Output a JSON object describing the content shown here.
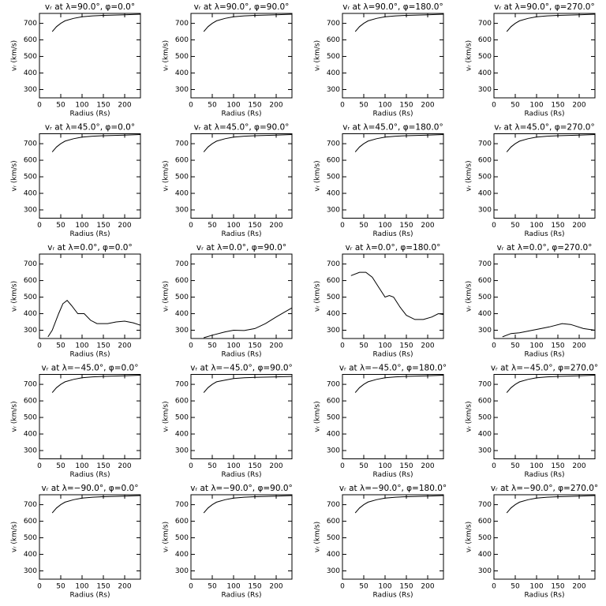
{
  "chart_data": [
    {
      "type": "line",
      "title": "vᵣ at λ=90.0°, φ=0.0°",
      "xlabel": "Radius (Rs)",
      "ylabel": "vᵣ (km/s)",
      "x": [
        30,
        40,
        50,
        60,
        80,
        100,
        125,
        150,
        200,
        237
      ],
      "values": [
        650,
        680,
        700,
        715,
        730,
        740,
        745,
        748,
        752,
        755
      ],
      "xlim": [
        0,
        237
      ],
      "ylim": [
        250,
        760
      ],
      "xticks": [
        0,
        50,
        100,
        150,
        200
      ],
      "yticks": [
        300,
        400,
        500,
        600,
        700
      ]
    },
    {
      "type": "line",
      "title": "vᵣ at λ=90.0°, φ=90.0°",
      "xlabel": "Radius (Rs)",
      "ylabel": "vᵣ (km/s)",
      "x": [
        30,
        40,
        50,
        60,
        80,
        100,
        125,
        150,
        200,
        237
      ],
      "values": [
        650,
        680,
        700,
        715,
        730,
        740,
        745,
        748,
        752,
        755
      ],
      "xlim": [
        0,
        237
      ],
      "ylim": [
        250,
        760
      ],
      "xticks": [
        0,
        50,
        100,
        150,
        200
      ],
      "yticks": [
        300,
        400,
        500,
        600,
        700
      ]
    },
    {
      "type": "line",
      "title": "vᵣ at λ=90.0°, φ=180.0°",
      "xlabel": "Radius (Rs)",
      "ylabel": "vᵣ (km/s)",
      "x": [
        30,
        40,
        50,
        60,
        80,
        100,
        125,
        150,
        200,
        237
      ],
      "values": [
        650,
        680,
        700,
        715,
        730,
        740,
        745,
        748,
        752,
        755
      ],
      "xlim": [
        0,
        237
      ],
      "ylim": [
        250,
        760
      ],
      "xticks": [
        0,
        50,
        100,
        150,
        200
      ],
      "yticks": [
        300,
        400,
        500,
        600,
        700
      ]
    },
    {
      "type": "line",
      "title": "vᵣ at λ=90.0°, φ=270.0°",
      "xlabel": "Radius (Rs)",
      "ylabel": "vᵣ (km/s)",
      "x": [
        30,
        40,
        50,
        60,
        80,
        100,
        125,
        150,
        200,
        237
      ],
      "values": [
        650,
        680,
        700,
        715,
        730,
        740,
        745,
        748,
        752,
        755
      ],
      "xlim": [
        0,
        237
      ],
      "ylim": [
        250,
        760
      ],
      "xticks": [
        0,
        50,
        100,
        150,
        200
      ],
      "yticks": [
        300,
        400,
        500,
        600,
        700
      ]
    },
    {
      "type": "line",
      "title": "vᵣ at λ=45.0°, φ=0.0°",
      "xlabel": "Radius (Rs)",
      "ylabel": "vᵣ (km/s)",
      "x": [
        30,
        40,
        50,
        60,
        80,
        100,
        125,
        150,
        200,
        237
      ],
      "values": [
        650,
        680,
        700,
        715,
        730,
        740,
        745,
        748,
        752,
        755
      ],
      "xlim": [
        0,
        237
      ],
      "ylim": [
        250,
        760
      ],
      "xticks": [
        0,
        50,
        100,
        150,
        200
      ],
      "yticks": [
        300,
        400,
        500,
        600,
        700
      ]
    },
    {
      "type": "line",
      "title": "vᵣ at λ=45.0°, φ=90.0°",
      "xlabel": "Radius (Rs)",
      "ylabel": "vᵣ (km/s)",
      "x": [
        30,
        40,
        50,
        60,
        80,
        100,
        125,
        150,
        200,
        237
      ],
      "values": [
        650,
        680,
        700,
        715,
        730,
        740,
        745,
        748,
        752,
        755
      ],
      "xlim": [
        0,
        237
      ],
      "ylim": [
        250,
        760
      ],
      "xticks": [
        0,
        50,
        100,
        150,
        200
      ],
      "yticks": [
        300,
        400,
        500,
        600,
        700
      ]
    },
    {
      "type": "line",
      "title": "vᵣ at λ=45.0°, φ=180.0°",
      "xlabel": "Radius (Rs)",
      "ylabel": "vᵣ (km/s)",
      "x": [
        30,
        40,
        50,
        60,
        80,
        100,
        125,
        150,
        200,
        237
      ],
      "values": [
        650,
        680,
        700,
        715,
        730,
        740,
        745,
        748,
        752,
        755
      ],
      "xlim": [
        0,
        237
      ],
      "ylim": [
        250,
        760
      ],
      "xticks": [
        0,
        50,
        100,
        150,
        200
      ],
      "yticks": [
        300,
        400,
        500,
        600,
        700
      ]
    },
    {
      "type": "line",
      "title": "vᵣ at λ=45.0°, φ=270.0°",
      "xlabel": "Radius (Rs)",
      "ylabel": "vᵣ (km/s)",
      "x": [
        30,
        40,
        50,
        60,
        80,
        100,
        125,
        150,
        200,
        237
      ],
      "values": [
        650,
        680,
        700,
        715,
        730,
        740,
        745,
        748,
        752,
        755
      ],
      "xlim": [
        0,
        237
      ],
      "ylim": [
        250,
        760
      ],
      "xticks": [
        0,
        50,
        100,
        150,
        200
      ],
      "yticks": [
        300,
        400,
        500,
        600,
        700
      ]
    },
    {
      "type": "line",
      "title": "vᵣ at λ=0.0°, φ=0.0°",
      "xlabel": "Radius (Rs)",
      "ylabel": "vᵣ (km/s)",
      "x": [
        20,
        30,
        45,
        55,
        65,
        75,
        90,
        105,
        120,
        135,
        160,
        180,
        200,
        220,
        237
      ],
      "values": [
        260,
        300,
        400,
        460,
        480,
        450,
        400,
        400,
        360,
        340,
        340,
        350,
        355,
        345,
        330
      ],
      "xlim": [
        0,
        237
      ],
      "ylim": [
        250,
        760
      ],
      "xticks": [
        0,
        50,
        100,
        150,
        200
      ],
      "yticks": [
        300,
        400,
        500,
        600,
        700
      ]
    },
    {
      "type": "line",
      "title": "vᵣ at λ=0.0°, φ=90.0°",
      "xlabel": "Radius (Rs)",
      "ylabel": "vᵣ (km/s)",
      "x": [
        30,
        50,
        80,
        100,
        125,
        150,
        175,
        200,
        220,
        237
      ],
      "values": [
        255,
        270,
        290,
        300,
        298,
        310,
        340,
        380,
        410,
        435
      ],
      "xlim": [
        0,
        237
      ],
      "ylim": [
        250,
        760
      ],
      "xticks": [
        0,
        50,
        100,
        150,
        200
      ],
      "yticks": [
        300,
        400,
        500,
        600,
        700
      ]
    },
    {
      "type": "line",
      "title": "vᵣ at λ=0.0°, φ=180.0°",
      "xlabel": "Radius (Rs)",
      "ylabel": "vᵣ (km/s)",
      "x": [
        20,
        40,
        55,
        70,
        85,
        100,
        110,
        120,
        135,
        150,
        170,
        190,
        210,
        225,
        237
      ],
      "values": [
        630,
        650,
        650,
        620,
        560,
        500,
        510,
        500,
        440,
        390,
        365,
        365,
        380,
        400,
        395
      ],
      "xlim": [
        0,
        237
      ],
      "ylim": [
        250,
        760
      ],
      "xticks": [
        0,
        50,
        100,
        150,
        200
      ],
      "yticks": [
        300,
        400,
        500,
        600,
        700
      ]
    },
    {
      "type": "line",
      "title": "vᵣ at λ=0.0°, φ=270.0°",
      "xlabel": "Radius (Rs)",
      "ylabel": "vᵣ (km/s)",
      "x": [
        20,
        40,
        60,
        80,
        100,
        130,
        160,
        180,
        210,
        237
      ],
      "values": [
        260,
        280,
        285,
        295,
        305,
        320,
        340,
        335,
        310,
        300
      ],
      "xlim": [
        0,
        237
      ],
      "ylim": [
        250,
        760
      ],
      "xticks": [
        0,
        50,
        100,
        150,
        200
      ],
      "yticks": [
        300,
        400,
        500,
        600,
        700
      ]
    },
    {
      "type": "line",
      "title": "vᵣ at λ=−45.0°, φ=0.0°",
      "xlabel": "Radius (Rs)",
      "ylabel": "vᵣ (km/s)",
      "x": [
        30,
        40,
        50,
        60,
        80,
        100,
        125,
        150,
        200,
        237
      ],
      "values": [
        650,
        680,
        700,
        715,
        730,
        740,
        745,
        748,
        752,
        755
      ],
      "xlim": [
        0,
        237
      ],
      "ylim": [
        250,
        760
      ],
      "xticks": [
        0,
        50,
        100,
        150,
        200
      ],
      "yticks": [
        300,
        400,
        500,
        600,
        700
      ]
    },
    {
      "type": "line",
      "title": "vᵣ at λ=−45.0°, φ=90.0°",
      "xlabel": "Radius (Rs)",
      "ylabel": "vᵣ (km/s)",
      "x": [
        30,
        40,
        50,
        60,
        80,
        100,
        125,
        150,
        200,
        237
      ],
      "values": [
        650,
        680,
        700,
        715,
        725,
        735,
        740,
        742,
        745,
        748
      ],
      "xlim": [
        0,
        237
      ],
      "ylim": [
        250,
        760
      ],
      "xticks": [
        0,
        50,
        100,
        150,
        200
      ],
      "yticks": [
        300,
        400,
        500,
        600,
        700
      ]
    },
    {
      "type": "line",
      "title": "vᵣ at λ=−45.0°, φ=180.0°",
      "xlabel": "Radius (Rs)",
      "ylabel": "vᵣ (km/s)",
      "x": [
        30,
        40,
        50,
        60,
        80,
        100,
        125,
        150,
        200,
        237
      ],
      "values": [
        650,
        680,
        700,
        715,
        730,
        740,
        745,
        748,
        752,
        755
      ],
      "xlim": [
        0,
        237
      ],
      "ylim": [
        250,
        760
      ],
      "xticks": [
        0,
        50,
        100,
        150,
        200
      ],
      "yticks": [
        300,
        400,
        500,
        600,
        700
      ]
    },
    {
      "type": "line",
      "title": "vᵣ at λ=−45.0°, φ=270.0°",
      "xlabel": "Radius (Rs)",
      "ylabel": "vᵣ (km/s)",
      "x": [
        30,
        40,
        50,
        60,
        80,
        100,
        125,
        150,
        200,
        237
      ],
      "values": [
        650,
        680,
        700,
        715,
        730,
        740,
        745,
        748,
        752,
        755
      ],
      "xlim": [
        0,
        237
      ],
      "ylim": [
        250,
        760
      ],
      "xticks": [
        0,
        50,
        100,
        150,
        200
      ],
      "yticks": [
        300,
        400,
        500,
        600,
        700
      ]
    },
    {
      "type": "line",
      "title": "vᵣ at λ=−90.0°, φ=0.0°",
      "xlabel": "Radius (Rs)",
      "ylabel": "vᵣ (km/s)",
      "x": [
        30,
        40,
        50,
        60,
        80,
        100,
        125,
        150,
        200,
        237
      ],
      "values": [
        650,
        680,
        700,
        715,
        730,
        740,
        745,
        748,
        752,
        755
      ],
      "xlim": [
        0,
        237
      ],
      "ylim": [
        250,
        760
      ],
      "xticks": [
        0,
        50,
        100,
        150,
        200
      ],
      "yticks": [
        300,
        400,
        500,
        600,
        700
      ]
    },
    {
      "type": "line",
      "title": "vᵣ at λ=−90.0°, φ=90.0°",
      "xlabel": "Radius (Rs)",
      "ylabel": "vᵣ (km/s)",
      "x": [
        30,
        40,
        50,
        60,
        80,
        100,
        125,
        150,
        200,
        237
      ],
      "values": [
        650,
        680,
        700,
        715,
        730,
        740,
        745,
        748,
        752,
        755
      ],
      "xlim": [
        0,
        237
      ],
      "ylim": [
        250,
        760
      ],
      "xticks": [
        0,
        50,
        100,
        150,
        200
      ],
      "yticks": [
        300,
        400,
        500,
        600,
        700
      ]
    },
    {
      "type": "line",
      "title": "vᵣ at λ=−90.0°, φ=180.0°",
      "xlabel": "Radius (Rs)",
      "ylabel": "vᵣ (km/s)",
      "x": [
        30,
        40,
        50,
        60,
        80,
        100,
        125,
        150,
        200,
        237
      ],
      "values": [
        650,
        680,
        700,
        715,
        730,
        740,
        745,
        748,
        752,
        755
      ],
      "xlim": [
        0,
        237
      ],
      "ylim": [
        250,
        760
      ],
      "xticks": [
        0,
        50,
        100,
        150,
        200
      ],
      "yticks": [
        300,
        400,
        500,
        600,
        700
      ]
    },
    {
      "type": "line",
      "title": "vᵣ at λ=−90.0°, φ=270.0°",
      "xlabel": "Radius (Rs)",
      "ylabel": "vᵣ (km/s)",
      "x": [
        30,
        40,
        50,
        60,
        80,
        100,
        125,
        150,
        200,
        237
      ],
      "values": [
        650,
        680,
        700,
        715,
        730,
        740,
        745,
        748,
        752,
        755
      ],
      "xlim": [
        0,
        237
      ],
      "ylim": [
        250,
        760
      ],
      "xticks": [
        0,
        50,
        100,
        150,
        200
      ],
      "yticks": [
        300,
        400,
        500,
        600,
        700
      ]
    }
  ]
}
